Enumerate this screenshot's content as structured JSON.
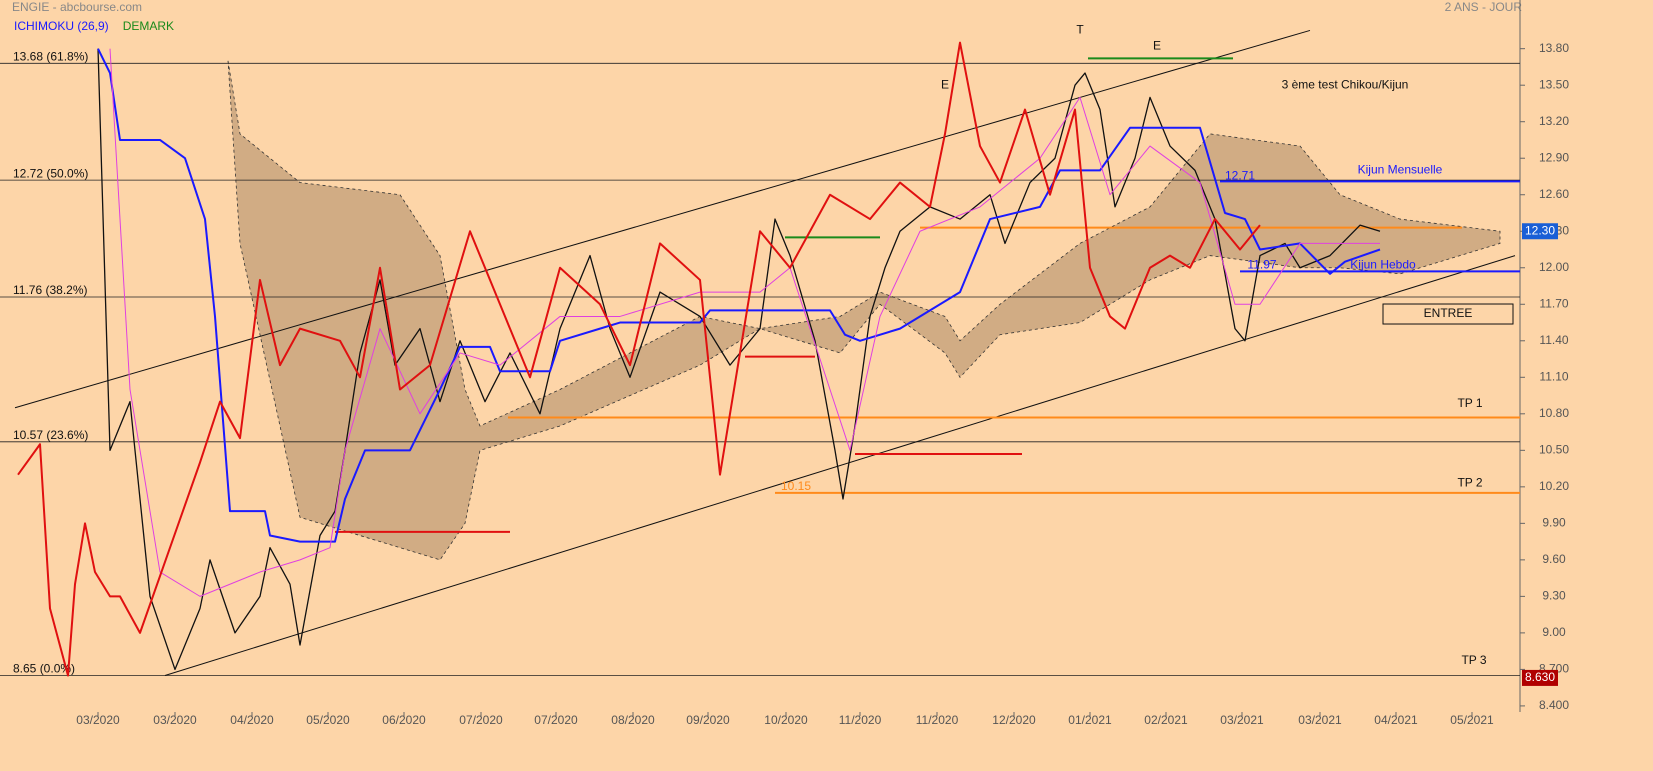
{
  "chart_data": {
    "type": "line",
    "title": "ENGIE - abcbourse.com",
    "subtitle": "2 ANS - JOUR",
    "indicators": [
      {
        "text": "ICHIMOKU (26,9)",
        "color": "#1a1aff"
      },
      {
        "text": "DEMARK",
        "color": "#1b8a1b"
      }
    ],
    "xlim": [
      0,
      1520
    ],
    "ylim": [
      8.35,
      14.2
    ],
    "xticks": [
      {
        "value": 98,
        "label": "03/2020"
      },
      {
        "value": 175,
        "label": "03/2020"
      },
      {
        "value": 252,
        "label": "04/2020"
      },
      {
        "value": 328,
        "label": "05/2020"
      },
      {
        "value": 404,
        "label": "06/2020"
      },
      {
        "value": 481,
        "label": "07/2020"
      },
      {
        "value": 556,
        "label": "07/2020"
      },
      {
        "value": 633,
        "label": "08/2020"
      },
      {
        "value": 708,
        "label": "09/2020"
      },
      {
        "value": 786,
        "label": "10/2020"
      },
      {
        "value": 860,
        "label": "11/2020"
      },
      {
        "value": 937,
        "label": "11/2020"
      },
      {
        "value": 1014,
        "label": "12/2020"
      },
      {
        "value": 1090,
        "label": "01/2021"
      },
      {
        "value": 1166,
        "label": "02/2021"
      },
      {
        "value": 1242,
        "label": "03/2021"
      },
      {
        "value": 1320,
        "label": "03/2021"
      },
      {
        "value": 1396,
        "label": "04/2021"
      },
      {
        "value": 1472,
        "label": "05/2021"
      }
    ],
    "yticks": [
      {
        "value": 13.8,
        "label": "13.80"
      },
      {
        "value": 13.5,
        "label": "13.50"
      },
      {
        "value": 13.2,
        "label": "13.20"
      },
      {
        "value": 12.9,
        "label": "12.90"
      },
      {
        "value": 12.6,
        "label": "12.60"
      },
      {
        "value": 12.3,
        "label": "12.30"
      },
      {
        "value": 12.0,
        "label": "12.00"
      },
      {
        "value": 11.7,
        "label": "11.70"
      },
      {
        "value": 11.4,
        "label": "11.40"
      },
      {
        "value": 11.1,
        "label": "11.10"
      },
      {
        "value": 10.8,
        "label": "10.80"
      },
      {
        "value": 10.5,
        "label": "10.50"
      },
      {
        "value": 10.2,
        "label": "10.20"
      },
      {
        "value": 9.9,
        "label": "9.90"
      },
      {
        "value": 9.6,
        "label": "9.60"
      },
      {
        "value": 9.3,
        "label": "9.30"
      },
      {
        "value": 9.0,
        "label": "9.00"
      },
      {
        "value": 8.7,
        "label": "8.700"
      },
      {
        "value": 8.4,
        "label": "8.400"
      }
    ],
    "fib_levels": [
      {
        "value": 13.68,
        "label": "13.68  (61.8%)"
      },
      {
        "value": 12.72,
        "label": "12.72  (50.0%)"
      },
      {
        "value": 11.76,
        "label": "11.76  (38.2%)"
      },
      {
        "value": 10.57,
        "label": "10.57  (23.6%)"
      },
      {
        "value": 8.65,
        "label": "8.65  (0.0%)"
      }
    ],
    "cloud": {
      "color": "#c9a57e",
      "x": [
        228,
        240,
        300,
        400,
        440,
        465,
        480,
        560,
        700,
        760,
        840,
        880,
        945,
        960,
        1000,
        1080,
        1150,
        1210,
        1300,
        1340,
        1400,
        1500
      ],
      "upper": [
        13.7,
        13.1,
        12.7,
        12.6,
        12.1,
        11.0,
        10.7,
        11.0,
        11.6,
        11.5,
        11.6,
        11.8,
        11.6,
        11.4,
        11.7,
        12.2,
        12.5,
        13.1,
        13.0,
        12.6,
        12.4,
        12.3
      ],
      "lower": [
        13.7,
        12.2,
        9.95,
        9.7,
        9.6,
        9.9,
        10.5,
        10.7,
        11.2,
        11.5,
        11.3,
        11.7,
        11.3,
        11.1,
        11.45,
        11.55,
        11.9,
        12.1,
        12.0,
        12.0,
        11.95,
        12.2
      ]
    },
    "series": [
      {
        "name": "Cours",
        "color": "#111111",
        "width": 1.3,
        "x": [
          98,
          110,
          130,
          150,
          175,
          200,
          210,
          235,
          260,
          270,
          290,
          300,
          320,
          335,
          345,
          360,
          380,
          395,
          420,
          440,
          460,
          485,
          510,
          540,
          560,
          590,
          610,
          630,
          660,
          700,
          730,
          760,
          775,
          790,
          815,
          835,
          843,
          855,
          870,
          885,
          900,
          930,
          960,
          990,
          1005,
          1030,
          1055,
          1075,
          1085,
          1100,
          1115,
          1135,
          1150,
          1170,
          1195,
          1215,
          1235,
          1245,
          1260,
          1285,
          1300,
          1330,
          1360,
          1380
        ],
        "values": [
          13.8,
          10.5,
          10.9,
          9.3,
          8.7,
          9.2,
          9.6,
          9.0,
          9.3,
          9.7,
          9.4,
          8.9,
          9.8,
          10.0,
          10.5,
          11.3,
          11.9,
          11.2,
          11.5,
          10.9,
          11.4,
          10.9,
          11.3,
          10.8,
          11.5,
          12.1,
          11.5,
          11.1,
          11.8,
          11.6,
          11.2,
          11.5,
          12.4,
          12.1,
          11.4,
          10.5,
          10.1,
          10.7,
          11.6,
          12.0,
          12.3,
          12.5,
          12.4,
          12.6,
          12.2,
          12.7,
          12.9,
          13.5,
          13.6,
          13.3,
          12.5,
          12.9,
          13.4,
          13.0,
          12.8,
          12.4,
          11.5,
          11.4,
          12.1,
          12.2,
          12.0,
          12.1,
          12.35,
          12.3
        ]
      },
      {
        "name": "Kijun",
        "color": "#1a1aff",
        "width": 2,
        "x": [
          98,
          110,
          120,
          160,
          185,
          205,
          215,
          230,
          265,
          270,
          300,
          335,
          345,
          365,
          380,
          410,
          440,
          460,
          490,
          500,
          550,
          560,
          600,
          620,
          700,
          710,
          830,
          845,
          860,
          900,
          960,
          990,
          1040,
          1060,
          1100,
          1130,
          1200,
          1225,
          1245,
          1260,
          1300,
          1330,
          1345,
          1380
        ],
        "values": [
          13.8,
          13.6,
          13.05,
          13.05,
          12.9,
          12.4,
          11.6,
          10.0,
          10.0,
          9.8,
          9.75,
          9.75,
          10.1,
          10.5,
          10.5,
          10.5,
          11.0,
          11.35,
          11.35,
          11.15,
          11.15,
          11.4,
          11.5,
          11.55,
          11.55,
          11.65,
          11.65,
          11.45,
          11.4,
          11.5,
          11.8,
          12.4,
          12.5,
          12.8,
          12.8,
          13.15,
          13.15,
          12.45,
          12.4,
          12.15,
          12.2,
          11.95,
          12.05,
          12.15
        ]
      },
      {
        "name": "Tenkan",
        "color": "#e040e0",
        "width": 1,
        "x": [
          110,
          130,
          160,
          200,
          260,
          300,
          330,
          345,
          380,
          420,
          460,
          500,
          560,
          620,
          700,
          760,
          790,
          830,
          850,
          880,
          920,
          980,
          1040,
          1080,
          1110,
          1150,
          1200,
          1235,
          1260,
          1300,
          1380
        ],
        "values": [
          13.8,
          11.0,
          9.5,
          9.3,
          9.5,
          9.6,
          9.7,
          10.5,
          11.5,
          10.8,
          11.3,
          11.2,
          11.6,
          11.6,
          11.8,
          11.8,
          12.0,
          11.0,
          10.5,
          11.6,
          12.3,
          12.5,
          12.9,
          13.4,
          12.6,
          13.0,
          12.7,
          11.7,
          11.7,
          12.2,
          12.2
        ]
      },
      {
        "name": "Chikou",
        "color": "#e01010",
        "width": 2,
        "x": [
          18,
          40,
          50,
          68,
          75,
          85,
          95,
          110,
          120,
          140,
          170,
          200,
          220,
          240,
          260,
          280,
          300,
          340,
          360,
          380,
          400,
          430,
          470,
          500,
          530,
          560,
          600,
          630,
          660,
          700,
          720,
          760,
          790,
          830,
          870,
          900,
          930,
          945,
          960,
          980,
          1000,
          1025,
          1050,
          1075,
          1090,
          1110,
          1125,
          1150,
          1170,
          1190,
          1215,
          1240,
          1260
        ],
        "values": [
          10.3,
          10.55,
          9.2,
          8.65,
          9.4,
          9.9,
          9.5,
          9.3,
          9.3,
          9.0,
          9.7,
          10.4,
          10.9,
          10.6,
          11.9,
          11.2,
          11.5,
          11.4,
          11.1,
          12.0,
          11.0,
          11.2,
          12.3,
          11.7,
          11.1,
          12.0,
          11.7,
          11.2,
          12.2,
          11.9,
          10.3,
          12.3,
          12.0,
          12.6,
          12.4,
          12.7,
          12.5,
          13.1,
          13.85,
          13.0,
          12.7,
          13.3,
          12.6,
          13.3,
          12.0,
          11.6,
          11.5,
          12.0,
          12.1,
          12.0,
          12.4,
          12.15,
          12.35
        ]
      }
    ],
    "trendlines": [
      {
        "x": [
          15,
          1310
        ],
        "y": [
          10.85,
          13.95
        ],
        "color": "#111111"
      },
      {
        "x": [
          165,
          1515
        ],
        "y": [
          8.65,
          12.1
        ],
        "color": "#111111"
      }
    ],
    "segments": [
      {
        "x": [
          1088,
          1233
        ],
        "y": 13.72,
        "color": "#1b8a1b"
      },
      {
        "x": [
          785,
          880
        ],
        "y": 12.25,
        "color": "#1b8a1b"
      },
      {
        "x": [
          335,
          510
        ],
        "y": 9.83,
        "color": "#e01010"
      },
      {
        "x": [
          745,
          815
        ],
        "y": 11.27,
        "color": "#e01010"
      },
      {
        "x": [
          855,
          1022
        ],
        "y": 10.47,
        "color": "#e01010"
      },
      {
        "x": [
          920,
          1462
        ],
        "y": 12.33,
        "color": "#ff8a1a"
      },
      {
        "x": [
          508,
          1520
        ],
        "y": 10.77,
        "color": "#ff8a1a"
      },
      {
        "x": [
          775,
          1520
        ],
        "y": 10.15,
        "color": "#ff8a1a"
      },
      {
        "x": [
          1220,
          1520
        ],
        "y": 12.71,
        "color": "#1a1aff"
      },
      {
        "x": [
          1240,
          1520
        ],
        "y": 11.97,
        "color": "#1a1aff"
      }
    ],
    "annotations": [
      {
        "text": "T",
        "x": 1080,
        "y": 13.95,
        "color": "#111111"
      },
      {
        "text": "E",
        "x": 945,
        "y": 13.5,
        "color": "#111111"
      },
      {
        "text": "E",
        "x": 1157,
        "y": 13.82,
        "color": "#111111"
      },
      {
        "text": "3 ème test Chikou/Kijun",
        "x": 1345,
        "y": 13.5,
        "color": "#111111"
      },
      {
        "text": "Kijun Mensuelle",
        "x": 1400,
        "y": 12.8,
        "color": "#1a1aff"
      },
      {
        "text": "12.71",
        "x": 1240,
        "y": 12.75,
        "color": "#1a1aff"
      },
      {
        "text": "Kijun Hebdo",
        "x": 1383,
        "y": 12.02,
        "color": "#1a1aff"
      },
      {
        "text": "11.97",
        "x": 1262,
        "y": 12.02,
        "color": "#1a1aff"
      },
      {
        "text": "10.15",
        "x": 796,
        "y": 10.2,
        "color": "#ff8a1a"
      },
      {
        "text": "TP 1",
        "x": 1470,
        "y": 10.88,
        "color": "#111111"
      },
      {
        "text": "TP 2",
        "x": 1470,
        "y": 10.23,
        "color": "#111111"
      },
      {
        "text": "TP 3",
        "x": 1474,
        "y": 8.77,
        "color": "#111111"
      },
      {
        "text": "ENTREE",
        "x": 1448,
        "y": 11.62,
        "color": "#111111",
        "box": true
      }
    ],
    "last_labels": [
      {
        "value": 12.3,
        "label": "12.30",
        "color": "#1a5fd6"
      },
      {
        "value": 8.63,
        "label": "8.630",
        "color": "#b00000"
      }
    ],
    "grid": false
  }
}
